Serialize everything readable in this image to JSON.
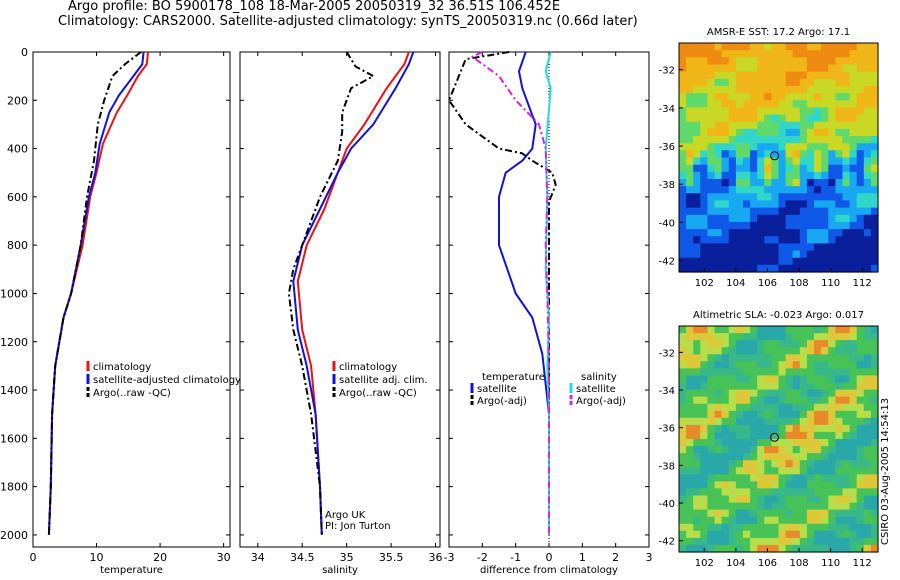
{
  "header": {
    "line1": "Argo profile: BO 5900178_108 18-Mar-2005 20050319_32 36.51S 106.452E",
    "line2": "Climatology: CARS2000. Satellite-adjusted climatology: synTS_20050319.nc (0.66d later)"
  },
  "stamp": "CSIRO 03-Aug-2005 14:54:13",
  "colors": {
    "climatology": "#ee1111",
    "satellite": "#1111dd",
    "argo": "#000000",
    "sal_sat": "#22dddd",
    "sal_argo": "#dd22dd"
  },
  "chart_data": [
    {
      "type": "line",
      "xlabel": "temperature",
      "ylabel": "",
      "xlim": [
        0,
        31
      ],
      "ylim": [
        2050,
        0
      ],
      "xticks": [
        "0",
        "10",
        "20",
        "30"
      ],
      "yticks": [
        "0",
        "200",
        "400",
        "600",
        "800",
        "1000",
        "1200",
        "1400",
        "1600",
        "1800",
        "2000"
      ],
      "legend": [
        "climatology",
        "satellite-adjusted climatology",
        "Argo(..raw -QC)"
      ],
      "series": [
        {
          "name": "climatology",
          "style": "solid",
          "color": "#ee1111",
          "x": [
            18.1,
            17.9,
            16.5,
            14.8,
            13.2,
            11.0,
            10.0,
            9.0,
            7.8,
            6.0,
            4.8,
            3.5,
            3.0,
            2.8,
            2.5
          ],
          "y": [
            0,
            50,
            100,
            180,
            250,
            380,
            500,
            600,
            800,
            1000,
            1100,
            1300,
            1500,
            1800,
            2000
          ]
        },
        {
          "name": "satellite-adjusted climatology",
          "style": "solid",
          "color": "#1111dd",
          "x": [
            17.4,
            17.2,
            15.8,
            13.5,
            12.0,
            10.5,
            9.8,
            8.8,
            7.5,
            6.0,
            4.8,
            3.5,
            3.0,
            2.8,
            2.5
          ],
          "y": [
            0,
            50,
            100,
            180,
            250,
            380,
            500,
            600,
            800,
            1000,
            1100,
            1300,
            1500,
            1800,
            2000
          ]
        },
        {
          "name": "Argo(..raw -QC)",
          "style": "dash",
          "color": "#000000",
          "x": [
            17.0,
            14.5,
            12.5,
            11.2,
            10.2,
            9.6,
            8.5,
            7.5,
            6.0,
            4.8,
            3.5,
            3.0,
            2.8,
            2.5
          ],
          "y": [
            0,
            50,
            100,
            200,
            300,
            450,
            600,
            800,
            1000,
            1100,
            1300,
            1500,
            1800,
            2000
          ]
        }
      ]
    },
    {
      "type": "line",
      "xlabel": "salinity",
      "ylabel": "",
      "xlim": [
        33.8,
        36.05
      ],
      "ylim": [
        2050,
        0
      ],
      "xticks": [
        "34",
        "34.5",
        "35",
        "35.5",
        "36"
      ],
      "yticks": [],
      "legend": [
        "climatology",
        "satellite adj. clim.",
        "Argo(..raw -QC)"
      ],
      "annotation": [
        "Argo UK",
        "PI: Jon Turton"
      ],
      "series": [
        {
          "name": "climatology",
          "style": "solid",
          "color": "#ee1111",
          "x": [
            35.7,
            35.65,
            35.45,
            35.2,
            35.0,
            34.9,
            34.75,
            34.55,
            34.45,
            34.5,
            34.6,
            34.65,
            34.7,
            34.72
          ],
          "y": [
            0,
            50,
            150,
            300,
            400,
            500,
            650,
            800,
            950,
            1150,
            1300,
            1500,
            1800,
            2000
          ]
        },
        {
          "name": "satellite adj. clim.",
          "style": "solid",
          "color": "#1111dd",
          "x": [
            35.75,
            35.7,
            35.55,
            35.3,
            35.05,
            34.9,
            34.7,
            34.5,
            34.4,
            34.45,
            34.55,
            34.65,
            34.7,
            34.72
          ],
          "y": [
            0,
            50,
            150,
            300,
            400,
            500,
            650,
            800,
            950,
            1150,
            1300,
            1500,
            1800,
            2000
          ]
        },
        {
          "name": "Argo(..raw -QC)",
          "style": "dash",
          "color": "#000000",
          "x": [
            35.0,
            35.1,
            35.3,
            35.05,
            34.95,
            34.95,
            34.9,
            34.7,
            34.5,
            34.4,
            34.35,
            34.4,
            34.5,
            34.6,
            34.7,
            34.72
          ],
          "y": [
            0,
            60,
            100,
            150,
            250,
            330,
            450,
            600,
            800,
            900,
            1000,
            1150,
            1300,
            1500,
            1800,
            2000
          ]
        }
      ]
    },
    {
      "type": "line",
      "xlabel": "difference from climatology",
      "ylabel": "",
      "xlim": [
        -3,
        3
      ],
      "ylim": [
        2050,
        0
      ],
      "xticks": [
        "-3",
        "-2",
        "-1",
        "0",
        "1",
        "2",
        "3"
      ],
      "yticks": [],
      "legend": [
        "temperature",
        "satellite",
        "Argo(-adj)",
        "salinity",
        "satellite",
        "Argo(-adj)"
      ],
      "series": [
        {
          "name": "temperature satellite",
          "style": "solid",
          "color": "#1111dd",
          "x": [
            -0.7,
            -0.9,
            -0.8,
            -0.4,
            -0.5,
            -0.8,
            -1.3,
            -1.5,
            -1.5,
            -1.0,
            -0.5,
            -0.2,
            0,
            0
          ],
          "y": [
            0,
            80,
            150,
            300,
            400,
            450,
            500,
            600,
            800,
            1000,
            1100,
            1250,
            1500,
            2000
          ]
        },
        {
          "name": "temperature Argo(-adj)",
          "style": "dash",
          "color": "#000000",
          "x": [
            -1.2,
            -2.5,
            -3.0,
            -2.5,
            -1.5,
            -0.8,
            -0.5,
            0.1,
            0.2,
            0,
            0,
            0
          ],
          "y": [
            0,
            30,
            200,
            300,
            400,
            420,
            450,
            500,
            550,
            620,
            800,
            2000
          ]
        },
        {
          "name": "salinity satellite",
          "style": "solid",
          "color": "#22dddd",
          "x": [
            0.05,
            -0.1,
            0.05,
            -0.1,
            -0.05,
            -0.1,
            0,
            -0.05,
            0,
            0
          ],
          "y": [
            0,
            80,
            150,
            400,
            600,
            900,
            1100,
            1300,
            1500,
            2000
          ]
        },
        {
          "name": "salinity Argo(-adj)",
          "style": "dash",
          "color": "#dd22dd",
          "x": [
            -2.0,
            -2.3,
            -1.5,
            -1.0,
            -0.3,
            -0.1,
            -0.05,
            -0.1,
            -0.05,
            0,
            0
          ],
          "y": [
            0,
            20,
            100,
            200,
            300,
            400,
            600,
            800,
            1000,
            1300,
            2000
          ]
        }
      ]
    },
    {
      "type": "heatmap",
      "title": "AMSR-E SST: 17.2 Argo: 17.1",
      "xticks": [
        "102",
        "104",
        "106",
        "108",
        "110",
        "112"
      ],
      "yticks": [
        "-32",
        "-34",
        "-36",
        "-38",
        "-40",
        "-42"
      ],
      "xlim": [
        100.4,
        113.0
      ],
      "ylim": [
        -30.6,
        -42.6
      ],
      "marker": {
        "lon": 106.45,
        "lat": -36.51
      }
    },
    {
      "type": "heatmap",
      "title": "Altimetric SLA: -0.023 Argo: 0.017",
      "xticks": [
        "102",
        "104",
        "106",
        "108",
        "110",
        "112"
      ],
      "yticks": [
        "-32",
        "-34",
        "-36",
        "-38",
        "-40",
        "-42"
      ],
      "xlim": [
        100.4,
        113.0
      ],
      "ylim": [
        -30.6,
        -42.6
      ],
      "marker": {
        "lon": 106.45,
        "lat": -36.51
      }
    }
  ]
}
